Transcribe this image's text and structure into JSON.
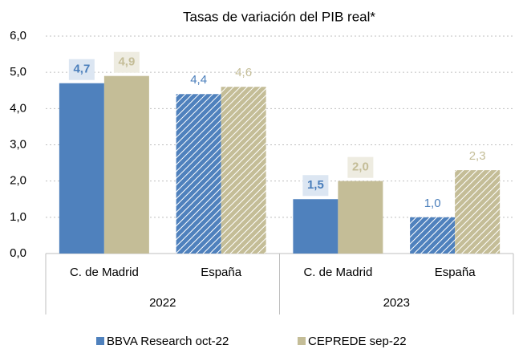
{
  "chart_data": {
    "type": "bar",
    "title": "Tasas de variación del PIB real*",
    "categories": [
      "C. de Madrid",
      "España",
      "C. de Madrid",
      "España"
    ],
    "groups": [
      "2022",
      "2023"
    ],
    "hatched": [
      false,
      true,
      false,
      true
    ],
    "series": [
      {
        "name": "BBVA Research oct-22",
        "color": "#4f81bd",
        "label_color": "#4a7ebb",
        "label_box": "#dce6f2",
        "values": [
          4.7,
          4.4,
          1.5,
          1.0
        ],
        "value_labels": [
          "4,7",
          "4,4",
          "1,5",
          "1,0"
        ]
      },
      {
        "name": "CEPREDE sep-22",
        "color": "#c4bd97",
        "label_color": "#c4bd97",
        "label_box": "#eeece1",
        "values": [
          4.9,
          4.6,
          2.0,
          2.3
        ],
        "value_labels": [
          "4,9",
          "4,6",
          "2,0",
          "2,3"
        ]
      }
    ],
    "ylim": [
      0,
      6
    ],
    "yticks": [
      {
        "value": 0,
        "label": "0,0"
      },
      {
        "value": 1,
        "label": "1,0"
      },
      {
        "value": 2,
        "label": "2,0"
      },
      {
        "value": 3,
        "label": "3,0"
      },
      {
        "value": 4,
        "label": "4,0"
      },
      {
        "value": 5,
        "label": "5,0"
      },
      {
        "value": 6,
        "label": "6,0"
      }
    ],
    "grid": true
  }
}
